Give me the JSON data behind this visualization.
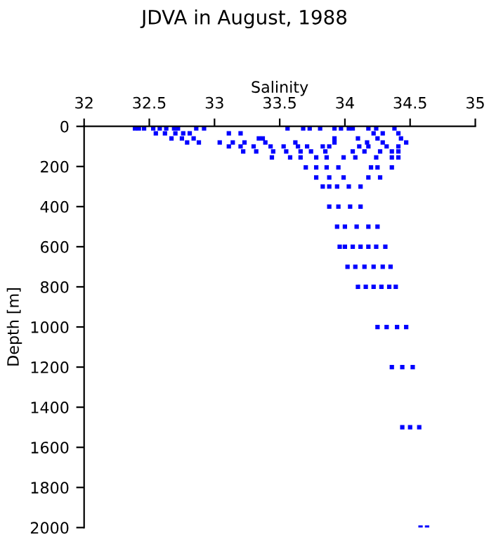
{
  "chart_data": {
    "type": "scatter",
    "title": "JDVA in August, 1988",
    "xlabel": "Salinity",
    "ylabel": "Depth [m]",
    "marker": "square",
    "grid": false,
    "legend": false,
    "xlim": [
      32,
      35
    ],
    "xticks": [
      32,
      32.5,
      33,
      33.5,
      34,
      34.5,
      35
    ],
    "ylim": [
      2000,
      0
    ],
    "yticks": [
      0,
      200,
      400,
      600,
      800,
      1000,
      1200,
      1400,
      1600,
      1800,
      2000
    ],
    "series": [
      {
        "color": "#0000ff",
        "x": [
          32.39,
          32.42,
          32.46,
          32.53,
          32.58,
          32.63,
          32.69,
          32.72,
          32.86,
          32.92,
          33.56,
          33.68,
          33.73,
          33.81,
          33.92,
          33.97,
          34.03,
          34.06,
          34.18,
          34.24,
          34.38,
          32.55,
          32.62,
          32.7,
          32.76,
          32.81,
          33.11,
          33.2,
          34.22,
          34.29,
          34.41,
          32.67,
          32.75,
          32.84,
          33.34,
          33.37,
          33.92,
          34.1,
          34.25,
          34.43,
          32.79,
          32.88,
          33.04,
          33.14,
          33.23,
          33.39,
          33.62,
          33.92,
          34.17,
          34.29,
          34.47,
          33.11,
          33.2,
          33.3,
          33.43,
          33.53,
          33.64,
          33.71,
          33.83,
          33.88,
          34.11,
          34.18,
          34.32,
          34.41,
          33.22,
          33.32,
          33.45,
          33.55,
          33.66,
          33.74,
          33.85,
          34.06,
          34.15,
          34.27,
          34.36,
          34.41,
          33.44,
          33.58,
          33.66,
          33.78,
          33.86,
          33.99,
          34.08,
          34.24,
          34.36,
          34.41,
          33.7,
          33.78,
          33.86,
          33.95,
          34.2,
          34.25,
          34.36,
          33.78,
          33.88,
          33.99,
          34.18,
          34.27,
          33.83,
          33.88,
          33.94,
          34.03,
          34.12,
          33.88,
          33.95,
          34.04,
          34.12,
          33.94,
          34.0,
          34.09,
          34.18,
          34.25,
          33.96,
          34.0,
          34.06,
          34.12,
          34.18,
          34.24,
          34.31,
          34.02,
          34.08,
          34.15,
          34.22,
          34.29,
          34.35,
          34.1,
          34.16,
          34.22,
          34.28,
          34.34,
          34.39,
          34.25,
          34.32,
          34.4,
          34.47,
          34.36,
          34.44,
          34.52,
          34.44,
          34.5,
          34.57,
          34.58,
          34.63
        ],
        "values": [
          10,
          10,
          10,
          10,
          10,
          10,
          10,
          10,
          10,
          10,
          10,
          10,
          10,
          10,
          10,
          10,
          10,
          10,
          10,
          10,
          10,
          35,
          35,
          35,
          35,
          35,
          35,
          35,
          35,
          35,
          35,
          60,
          60,
          60,
          60,
          60,
          60,
          60,
          60,
          60,
          80,
          80,
          80,
          80,
          80,
          80,
          80,
          80,
          80,
          80,
          80,
          100,
          100,
          100,
          100,
          100,
          100,
          100,
          100,
          100,
          100,
          100,
          100,
          100,
          125,
          125,
          125,
          125,
          125,
          125,
          125,
          125,
          125,
          125,
          125,
          125,
          155,
          155,
          155,
          155,
          155,
          155,
          155,
          155,
          155,
          155,
          205,
          205,
          205,
          205,
          205,
          205,
          205,
          255,
          255,
          255,
          255,
          255,
          300,
          300,
          300,
          300,
          300,
          400,
          400,
          400,
          400,
          500,
          500,
          500,
          500,
          500,
          600,
          600,
          600,
          600,
          600,
          600,
          600,
          700,
          700,
          700,
          700,
          700,
          700,
          800,
          800,
          800,
          800,
          800,
          800,
          1000,
          1000,
          1000,
          1000,
          1200,
          1200,
          1200,
          1500,
          1500,
          1500,
          2000,
          2000
        ]
      }
    ]
  }
}
